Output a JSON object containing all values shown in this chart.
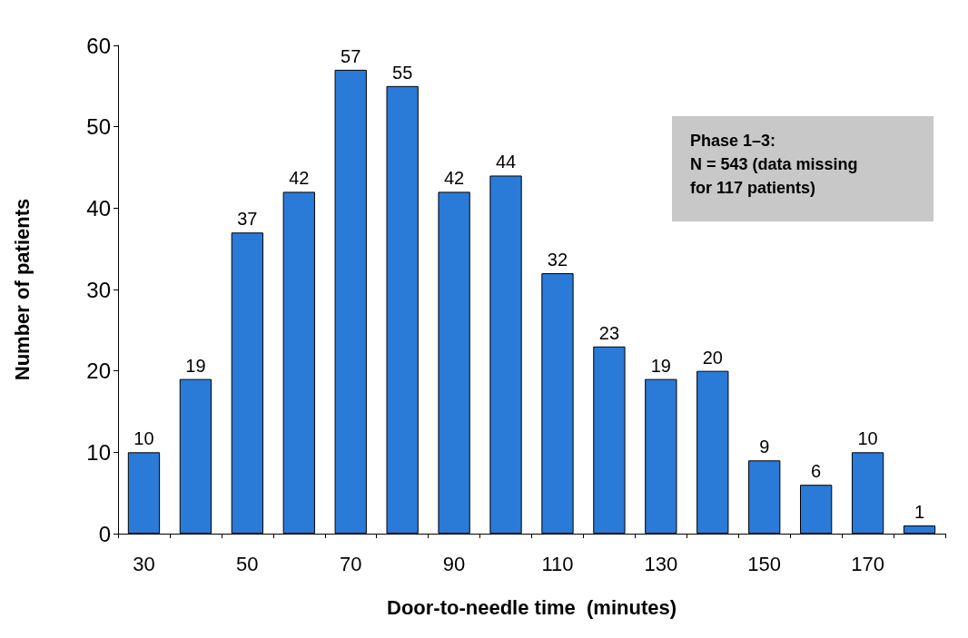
{
  "chart_data": {
    "type": "bar",
    "xlabel": "Door-to-needle time  (minutes)",
    "ylabel": "Number of patients",
    "categories": [
      "30",
      null,
      "50",
      null,
      "70",
      null,
      "90",
      null,
      "110",
      null,
      "130",
      null,
      "150",
      null,
      "170",
      null
    ],
    "values": [
      10,
      19,
      37,
      42,
      57,
      55,
      42,
      44,
      32,
      23,
      19,
      20,
      9,
      6,
      10,
      1
    ],
    "color": "#2a7ad8",
    "ylim": [
      0,
      60
    ],
    "yticks": [
      0,
      10,
      20,
      30,
      40,
      50,
      60
    ],
    "grid": false,
    "data_labels": true,
    "annotations": [
      "Phase 1–3:\nN = 543 (data missing\nfor 117 patients)"
    ]
  }
}
